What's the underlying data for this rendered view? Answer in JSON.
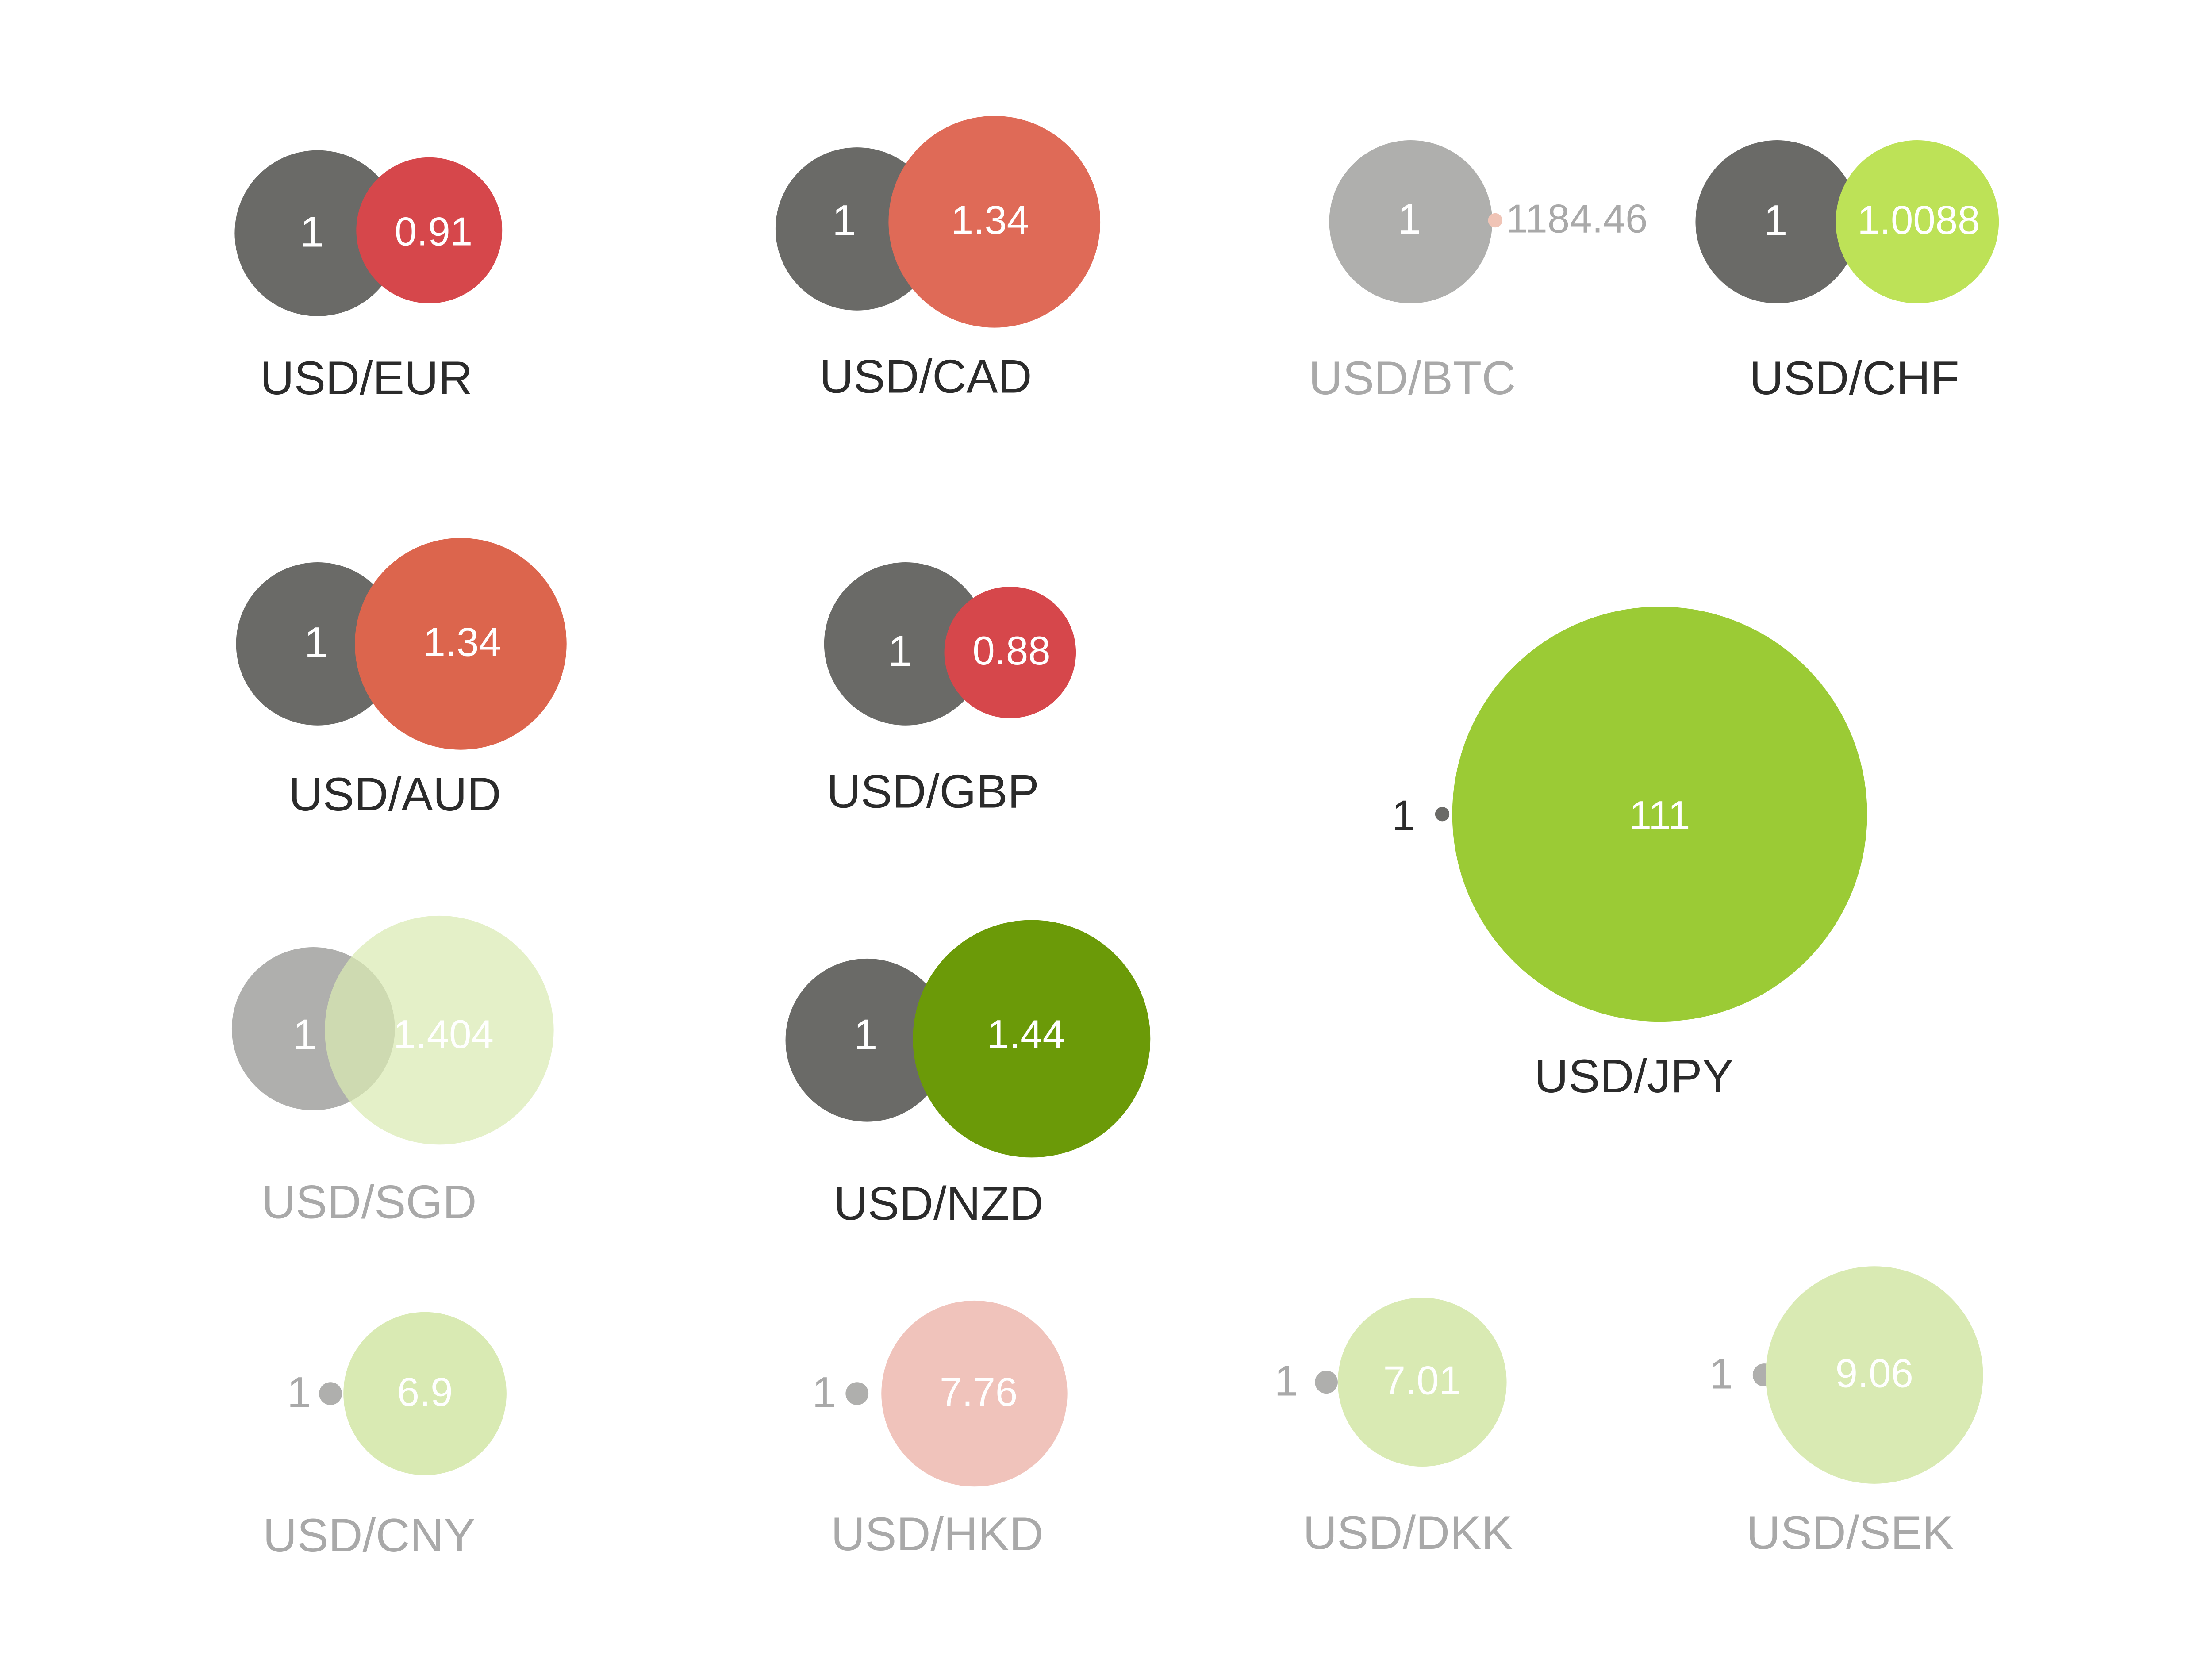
{
  "chart_data": {
    "type": "bubble-pairs",
    "title": "",
    "base_label": "1",
    "pairs": [
      {
        "label": "USD/EUR",
        "base": 1,
        "value": 0.91,
        "value_label": "0.91",
        "color": "#d6474b",
        "dimmed": false
      },
      {
        "label": "USD/CAD",
        "base": 1,
        "value": 1.34,
        "value_label": "1.34",
        "color": "#df6a57",
        "dimmed": false
      },
      {
        "label": "USD/BTC",
        "base": 1,
        "value": 1184.46,
        "value_label": "1184.46",
        "color": "#f0c4b6",
        "dimmed": true
      },
      {
        "label": "USD/CHF",
        "base": 1,
        "value": 1.0088,
        "value_label": "1.0088",
        "color": "#bde257",
        "dimmed": false
      },
      {
        "label": "USD/AUD",
        "base": 1,
        "value": 1.34,
        "value_label": "1.34",
        "color": "#dc654d",
        "dimmed": false
      },
      {
        "label": "USD/GBP",
        "base": 1,
        "value": 0.88,
        "value_label": "0.88",
        "color": "#d6474b",
        "dimmed": false
      },
      {
        "label": "USD/JPY",
        "base": 1,
        "value": 111,
        "value_label": "111",
        "color": "#9bcb35",
        "dimmed": false
      },
      {
        "label": "USD/SGD",
        "base": 1,
        "value": 1.404,
        "value_label": "1.404",
        "color": "#d9eab3",
        "dimmed": true
      },
      {
        "label": "USD/NZD",
        "base": 1,
        "value": 1.44,
        "value_label": "1.44",
        "color": "#6b9a08",
        "dimmed": false
      },
      {
        "label": "USD/CNY",
        "base": 1,
        "value": 6.9,
        "value_label": "6.9",
        "color": "#d9eab3",
        "dimmed": true
      },
      {
        "label": "USD/HKD",
        "base": 1,
        "value": 7.76,
        "value_label": "7.76",
        "color": "#f0c3bb",
        "dimmed": true
      },
      {
        "label": "USD/DKK",
        "base": 1,
        "value": 7.01,
        "value_label": "7.01",
        "color": "#d9eab3",
        "dimmed": true
      },
      {
        "label": "USD/SEK",
        "base": 1,
        "value": 9.06,
        "value_label": "9.06",
        "color": "#d9eab3",
        "dimmed": true
      }
    ],
    "colors": {
      "base": "#6a6a67",
      "base_dimmed": "#afafad",
      "label": "#2b2b2b",
      "label_dimmed": "#a9a9a9",
      "inner_text": "#ffffff"
    }
  }
}
